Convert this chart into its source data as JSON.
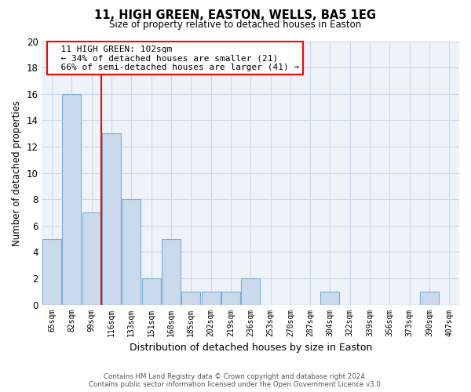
{
  "title": "11, HIGH GREEN, EASTON, WELLS, BA5 1EG",
  "subtitle": "Size of property relative to detached houses in Easton",
  "xlabel": "Distribution of detached houses by size in Easton",
  "ylabel": "Number of detached properties",
  "bin_labels": [
    "65sqm",
    "82sqm",
    "99sqm",
    "116sqm",
    "133sqm",
    "151sqm",
    "168sqm",
    "185sqm",
    "202sqm",
    "219sqm",
    "236sqm",
    "253sqm",
    "270sqm",
    "287sqm",
    "304sqm",
    "322sqm",
    "339sqm",
    "356sqm",
    "373sqm",
    "390sqm",
    "407sqm"
  ],
  "bar_heights": [
    5,
    16,
    7,
    13,
    8,
    2,
    5,
    1,
    1,
    1,
    2,
    0,
    0,
    0,
    1,
    0,
    0,
    0,
    0,
    1,
    0
  ],
  "bar_color": "#cad9ec",
  "bar_edge_color": "#7bafd4",
  "property_line_index": 2,
  "property_label": "11 HIGH GREEN: 102sqm",
  "smaller_pct": 34,
  "smaller_count": 21,
  "larger_pct": 66,
  "larger_count": 41,
  "ylim": [
    0,
    20
  ],
  "yticks": [
    0,
    2,
    4,
    6,
    8,
    10,
    12,
    14,
    16,
    18,
    20
  ],
  "footer_line1": "Contains HM Land Registry data © Crown copyright and database right 2024.",
  "footer_line2": "Contains public sector information licensed under the Open Government Licence v3.0.",
  "bg_color": "#ffffff",
  "grid_color": "#ccd8e8"
}
